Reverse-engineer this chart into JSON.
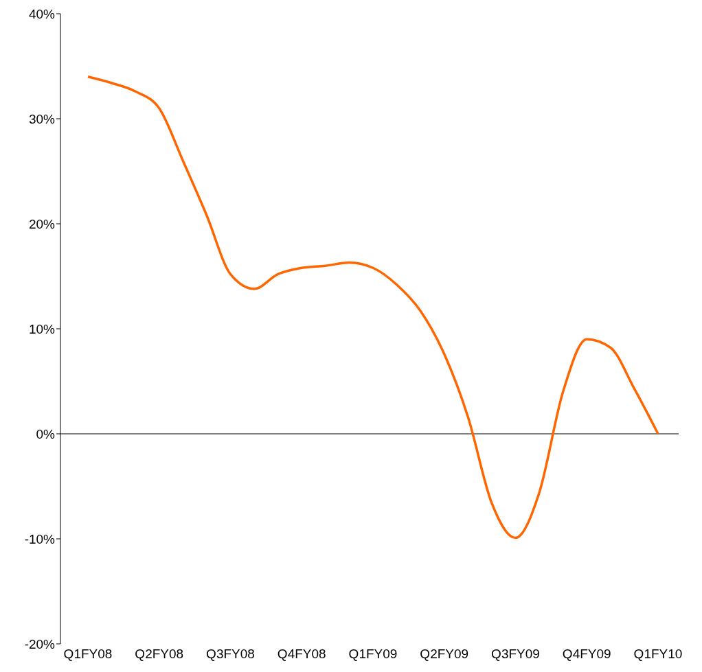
{
  "chart_data": {
    "type": "line",
    "categories": [
      "Q1FY08",
      null,
      null,
      "Q2FY08",
      null,
      null,
      "Q3FY08",
      null,
      null,
      "Q4FY08",
      null,
      null,
      "Q1FY09",
      null,
      null,
      "Q2FY09",
      null,
      null,
      "Q3FY09",
      null,
      null,
      "Q4FY09",
      null,
      null,
      "Q1FY10"
    ],
    "series": [
      {
        "color": "#ff6600",
        "values": [
          34.0,
          33.4,
          32.6,
          31.0,
          26.0,
          20.8,
          15.2,
          13.8,
          15.2,
          15.8,
          16.0,
          16.3,
          15.8,
          14.2,
          11.7,
          7.6,
          1.6,
          -6.6,
          -9.9,
          -5.6,
          4.0,
          9.0,
          8.2,
          4.3,
          0
        ]
      }
    ],
    "ylim": [
      -20,
      40
    ],
    "yticks": [
      {
        "value": -20,
        "label": "-20%"
      },
      {
        "value": -10,
        "label": "-10%"
      },
      {
        "value": 0,
        "label": "0%"
      },
      {
        "value": 10,
        "label": "10%"
      },
      {
        "value": 20,
        "label": "20%"
      },
      {
        "value": 30,
        "label": "30%"
      },
      {
        "value": 40,
        "label": "40%"
      }
    ],
    "ref_lines": [
      {
        "axis": "y",
        "value": 0,
        "color": "#000000"
      }
    ],
    "grid": false,
    "marker": "none",
    "line_style": "solid"
  }
}
